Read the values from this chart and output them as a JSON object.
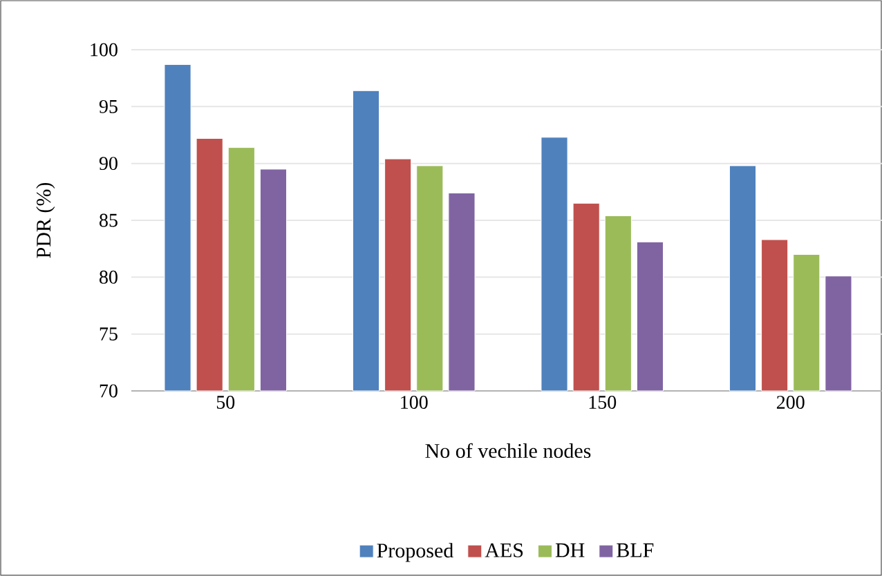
{
  "chart_data": {
    "type": "bar",
    "xlabel": "No of vechile nodes",
    "ylabel": "PDR (%)",
    "categories": [
      "50",
      "100",
      "150",
      "200"
    ],
    "series": [
      {
        "name": "Proposed",
        "color": "#4f81bd",
        "values": [
          98.7,
          96.4,
          92.3,
          89.8
        ]
      },
      {
        "name": "AES",
        "color": "#c0504d",
        "values": [
          92.2,
          90.4,
          86.5,
          83.3
        ]
      },
      {
        "name": "DH",
        "color": "#9bbb59",
        "values": [
          91.4,
          89.8,
          85.4,
          82.0
        ]
      },
      {
        "name": "BLF",
        "color": "#8064a2",
        "values": [
          89.5,
          87.4,
          83.1,
          80.1
        ]
      }
    ],
    "ylim": [
      70,
      100
    ],
    "yticks": [
      70,
      75,
      80,
      85,
      90,
      95,
      100
    ],
    "grid": "y",
    "legend": "bottom"
  }
}
